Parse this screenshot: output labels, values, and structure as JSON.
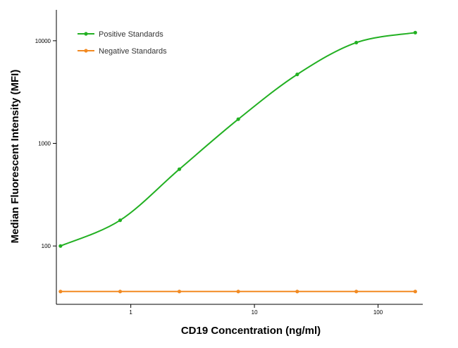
{
  "chart_data": {
    "type": "line",
    "title": "",
    "xlabel": "CD19 Concentration (ng/ml)",
    "ylabel": "Median  Fluorescent Intensity  (MFI)",
    "xscale": "log",
    "yscale": "log",
    "xlim": [
      0.25,
      230
    ],
    "ylim": [
      27,
      20000
    ],
    "x_ticks": [
      1,
      10,
      100
    ],
    "x_tick_labels": [
      "1",
      "10",
      "100"
    ],
    "y_ticks": [
      100,
      1000,
      10000
    ],
    "y_tick_labels": [
      "100",
      "1000",
      "10000"
    ],
    "grid": false,
    "legend_position": "top-left",
    "x": [
      0.27,
      0.82,
      2.47,
      7.4,
      22.2,
      66.7,
      200
    ],
    "series": [
      {
        "name": "Positive Standards",
        "color": "#22b022",
        "values": [
          100,
          178,
          560,
          1720,
          4700,
          9600,
          12000
        ]
      },
      {
        "name": "Negative Standards",
        "color": "#f28a22",
        "values": [
          36,
          36,
          36,
          36,
          36,
          36,
          36
        ]
      }
    ]
  }
}
